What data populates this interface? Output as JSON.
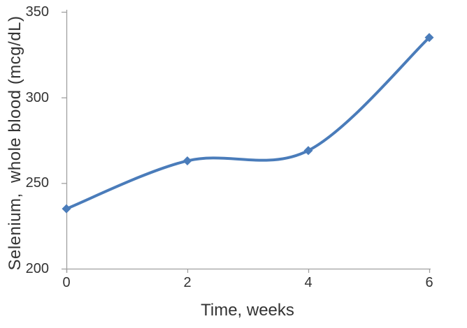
{
  "chart_data": {
    "type": "line",
    "title": "",
    "xlabel": "Time, weeks",
    "ylabel": "Selenium,  whole blood (mcg/dL)",
    "x": [
      0,
      2,
      4,
      6
    ],
    "series": [
      {
        "name": "Selenium whole blood",
        "values": [
          235,
          263,
          269,
          335
        ]
      }
    ],
    "xlim": [
      0,
      6
    ],
    "ylim": [
      200,
      350
    ],
    "xticks": [
      0,
      2,
      4,
      6
    ],
    "yticks": [
      350,
      300,
      250,
      200
    ],
    "grid": false,
    "legend": "none",
    "smooth_line": true,
    "marker": "diamond",
    "marker_size": 6.5,
    "line_width": 4,
    "colors": {
      "line": "#4a7cba",
      "marker": "#4a7cba",
      "axis": "#a0a0a0",
      "text": "#333333",
      "background": "#ffffff"
    }
  }
}
